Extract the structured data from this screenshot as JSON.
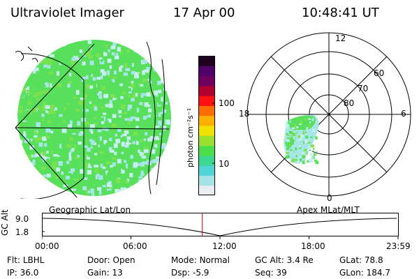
{
  "header": {
    "instrument": "Ultraviolet Imager",
    "date": "17 Apr 00",
    "time": "10:48:41 UT"
  },
  "colorbar": {
    "unit_label": "photon cm⁻²s⁻¹",
    "tick_labels": [
      "100",
      "10"
    ],
    "colors": [
      "#e8eef2",
      "#a6e2e6",
      "#4ed6d6",
      "#3cd890",
      "#4be04b",
      "#9be030",
      "#f0e100",
      "#ffb000",
      "#ff6d00",
      "#ff1010",
      "#b00030",
      "#700060",
      "#500068",
      "#200020"
    ]
  },
  "geo_panel": {
    "label": "Geographic Lat/Lon",
    "aurora_colors": [
      "#58e05c",
      "#7be24e",
      "#a6e6e6",
      "#c8eff0"
    ]
  },
  "polar_panel": {
    "label": "Apex MLat/MLT",
    "mlt_labels": [
      "12",
      "18",
      "6",
      "0"
    ],
    "mlat_labels": [
      "60",
      "70",
      "80"
    ]
  },
  "altitude_plot": {
    "ylabel": "GC Alt",
    "y_ticks": [
      "9.0",
      "1.8"
    ],
    "x_ticks": [
      "00:00",
      "06:00",
      "12:00",
      "18:00",
      "23:59"
    ],
    "marker_time_hours": 10.81,
    "marker_color": "#cc0000"
  },
  "info": {
    "row1": [
      {
        "label": "Flt:",
        "value": "LBHL"
      },
      {
        "label": "Door:",
        "value": "Open"
      },
      {
        "label": "Mode:",
        "value": "Normal"
      },
      {
        "label": "GC Alt:",
        "value": "3.4 Re"
      },
      {
        "label": "GLat:",
        "value": "78.8"
      }
    ],
    "row2": [
      {
        "label": "IP:",
        "value": "36.0"
      },
      {
        "label": "Gain:",
        "value": "13"
      },
      {
        "label": "Dsp:",
        "value": "-5.9"
      },
      {
        "label": "Seq:",
        "value": "39"
      },
      {
        "label": "GLon:",
        "value": "184.7"
      }
    ]
  }
}
